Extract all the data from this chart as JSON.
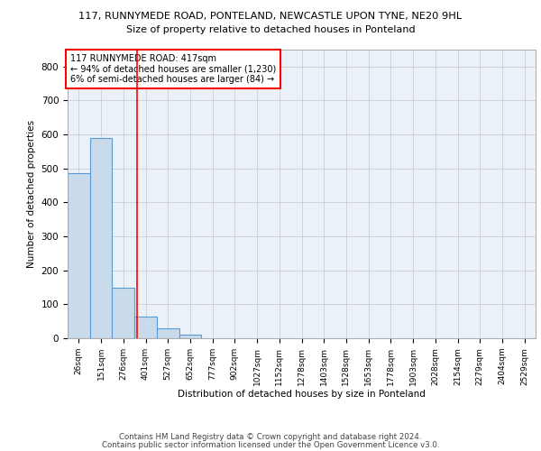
{
  "title1": "117, RUNNYMEDE ROAD, PONTELAND, NEWCASTLE UPON TYNE, NE20 9HL",
  "title2": "Size of property relative to detached houses in Ponteland",
  "xlabel": "Distribution of detached houses by size in Ponteland",
  "ylabel": "Number of detached properties",
  "bar_labels": [
    "26sqm",
    "151sqm",
    "276sqm",
    "401sqm",
    "527sqm",
    "652sqm",
    "777sqm",
    "902sqm",
    "1027sqm",
    "1152sqm",
    "1278sqm",
    "1403sqm",
    "1528sqm",
    "1653sqm",
    "1778sqm",
    "1903sqm",
    "2028sqm",
    "2154sqm",
    "2279sqm",
    "2404sqm",
    "2529sqm"
  ],
  "bar_values": [
    487,
    591,
    150,
    65,
    28,
    10,
    0,
    0,
    0,
    0,
    0,
    0,
    0,
    0,
    0,
    0,
    0,
    0,
    0,
    0,
    0
  ],
  "bar_color": "#c9daea",
  "bar_edge_color": "#5b9bd5",
  "annotation_line1": "117 RUNNYMEDE ROAD: 417sqm",
  "annotation_line2": "← 94% of detached houses are smaller (1,230)",
  "annotation_line3": "6% of semi-detached houses are larger (84) →",
  "ylim": [
    0,
    850
  ],
  "yticks": [
    0,
    100,
    200,
    300,
    400,
    500,
    600,
    700,
    800
  ],
  "grid_color": "#cccccc",
  "bg_color": "#eaf1f8",
  "footer_line1": "Contains HM Land Registry data © Crown copyright and database right 2024.",
  "footer_line2": "Contains public sector information licensed under the Open Government Licence v3.0."
}
